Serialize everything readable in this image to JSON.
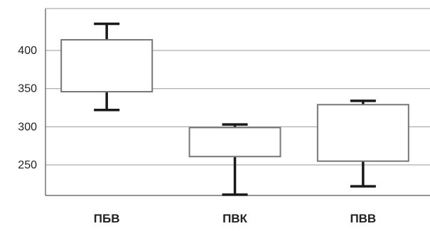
{
  "chart_data": {
    "type": "box",
    "title": "",
    "xlabel": "",
    "ylabel": "",
    "ylim": [
      210,
      455
    ],
    "yticks": [
      250,
      300,
      350,
      400
    ],
    "grid": true,
    "categories": [
      "ПБВ",
      "ПВК",
      "ПВВ"
    ],
    "boxes": [
      {
        "category": "ПБВ",
        "min": 322,
        "q1": 346,
        "q3": 414,
        "max": 435
      },
      {
        "category": "ПВК",
        "min": 211,
        "q1": 261,
        "q3": 299,
        "max": 303
      },
      {
        "category": "ПВВ",
        "min": 222,
        "q1": 255,
        "q3": 329,
        "max": 334
      }
    ],
    "colors": {
      "box_stroke": "#777777",
      "whisker": "#1a1a1a",
      "grid": "#999999",
      "axis": "#555555"
    }
  }
}
